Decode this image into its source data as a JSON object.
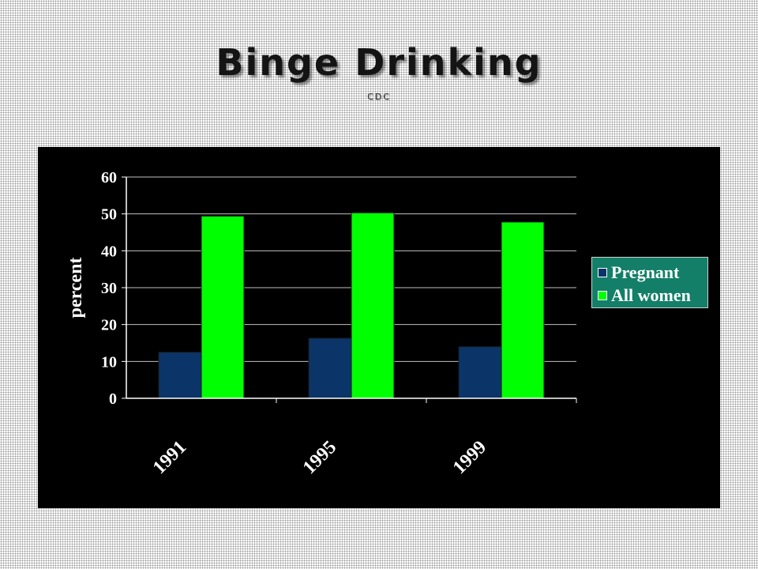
{
  "slide": {
    "title": "Binge Drinking",
    "subtitle": "CDC"
  },
  "chart_data": {
    "type": "bar",
    "categories": [
      "1991",
      "1995",
      "1999"
    ],
    "series": [
      {
        "name": "Pregnant",
        "values": [
          12.5,
          16.3,
          14.0
        ],
        "color": "#0b3568"
      },
      {
        "name": "All women",
        "values": [
          49.4,
          50.3,
          47.8
        ],
        "color": "#00ff00"
      }
    ],
    "ylabel": "percent",
    "xlabel": "",
    "ylim": [
      0,
      60
    ],
    "yticks": [
      0,
      10,
      20,
      30,
      40,
      50,
      60
    ],
    "grid": true,
    "legend_position": "right",
    "colors": {
      "background": "#000000",
      "legend_background": "#137f68",
      "text": "#ffffff",
      "grid": "#c0c0c0"
    }
  }
}
